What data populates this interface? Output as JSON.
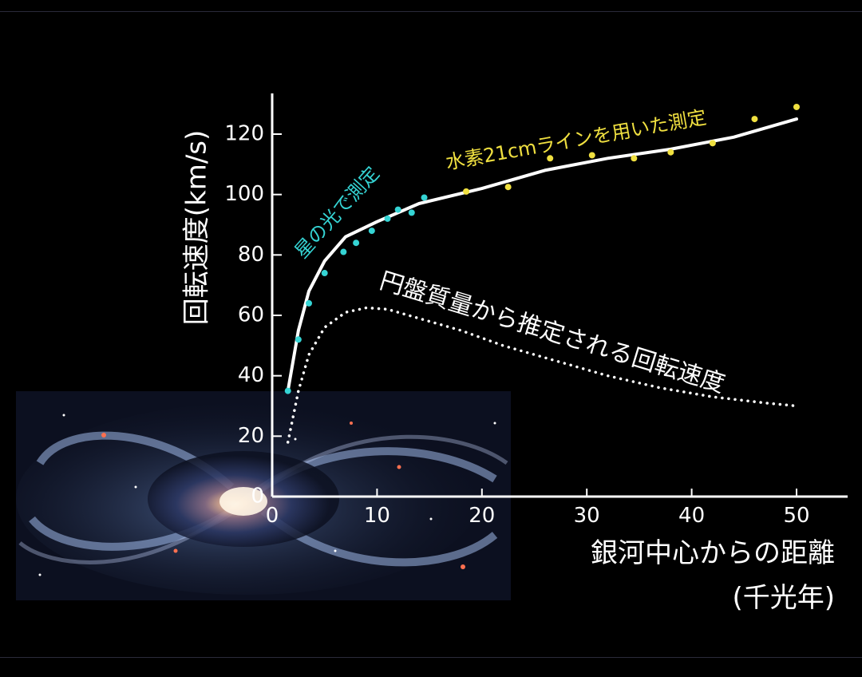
{
  "chart_data": {
    "type": "line",
    "ylabel": "回転速度(km/s)",
    "xlabel": "銀河中心からの距離",
    "xlabel_unit": "(千光年)",
    "xlim": [
      0,
      55
    ],
    "ylim": [
      0,
      130
    ],
    "x_ticks": [
      0,
      10,
      20,
      30,
      40,
      50
    ],
    "y_ticks": [
      0,
      20,
      40,
      60,
      80,
      100,
      120
    ],
    "series": [
      {
        "style": "solid",
        "color": "#ffffff",
        "x": [
          1.5,
          2.5,
          3.5,
          5,
          7,
          10,
          14,
          20,
          26,
          32,
          38,
          44,
          50
        ],
        "y": [
          35,
          55,
          68,
          78,
          86,
          91,
          97,
          102,
          108,
          112,
          115,
          119,
          125
        ]
      },
      {
        "name": "円盤質量から推定される回転速度",
        "style": "dotted",
        "color": "#ffffff",
        "x": [
          1.5,
          2.5,
          3.5,
          5,
          7,
          9,
          11,
          14,
          18,
          22,
          27,
          32,
          37,
          42,
          47,
          50
        ],
        "y": [
          18,
          35,
          47,
          56,
          61,
          62.5,
          62,
          59,
          55,
          50,
          45,
          40,
          36,
          33,
          31,
          30
        ]
      },
      {
        "name": "星の光で測定",
        "style": "points",
        "color": "#35d4d4",
        "x": [
          1.5,
          2.5,
          3.5,
          5,
          6.8,
          8,
          9.5,
          11,
          12,
          13.3,
          14.5
        ],
        "y": [
          35,
          52,
          64,
          74,
          81,
          84,
          88,
          92,
          95,
          94,
          99
        ]
      },
      {
        "name": "水素21cmラインを用いた測定",
        "style": "points",
        "color": "#f0e040",
        "x": [
          18.5,
          22.5,
          26.5,
          30.5,
          34.5,
          38,
          42,
          46,
          50
        ],
        "y": [
          101,
          102.5,
          112,
          113,
          112,
          114,
          117,
          125,
          129
        ]
      }
    ],
    "annotations": [
      {
        "text": "星の光で測定",
        "color": "#35d4d4"
      },
      {
        "text": "水素21cmラインを用いた測定",
        "color": "#f0e040"
      },
      {
        "text": "円盤質量から推定される回転速度",
        "color": "#ffffff"
      }
    ]
  }
}
